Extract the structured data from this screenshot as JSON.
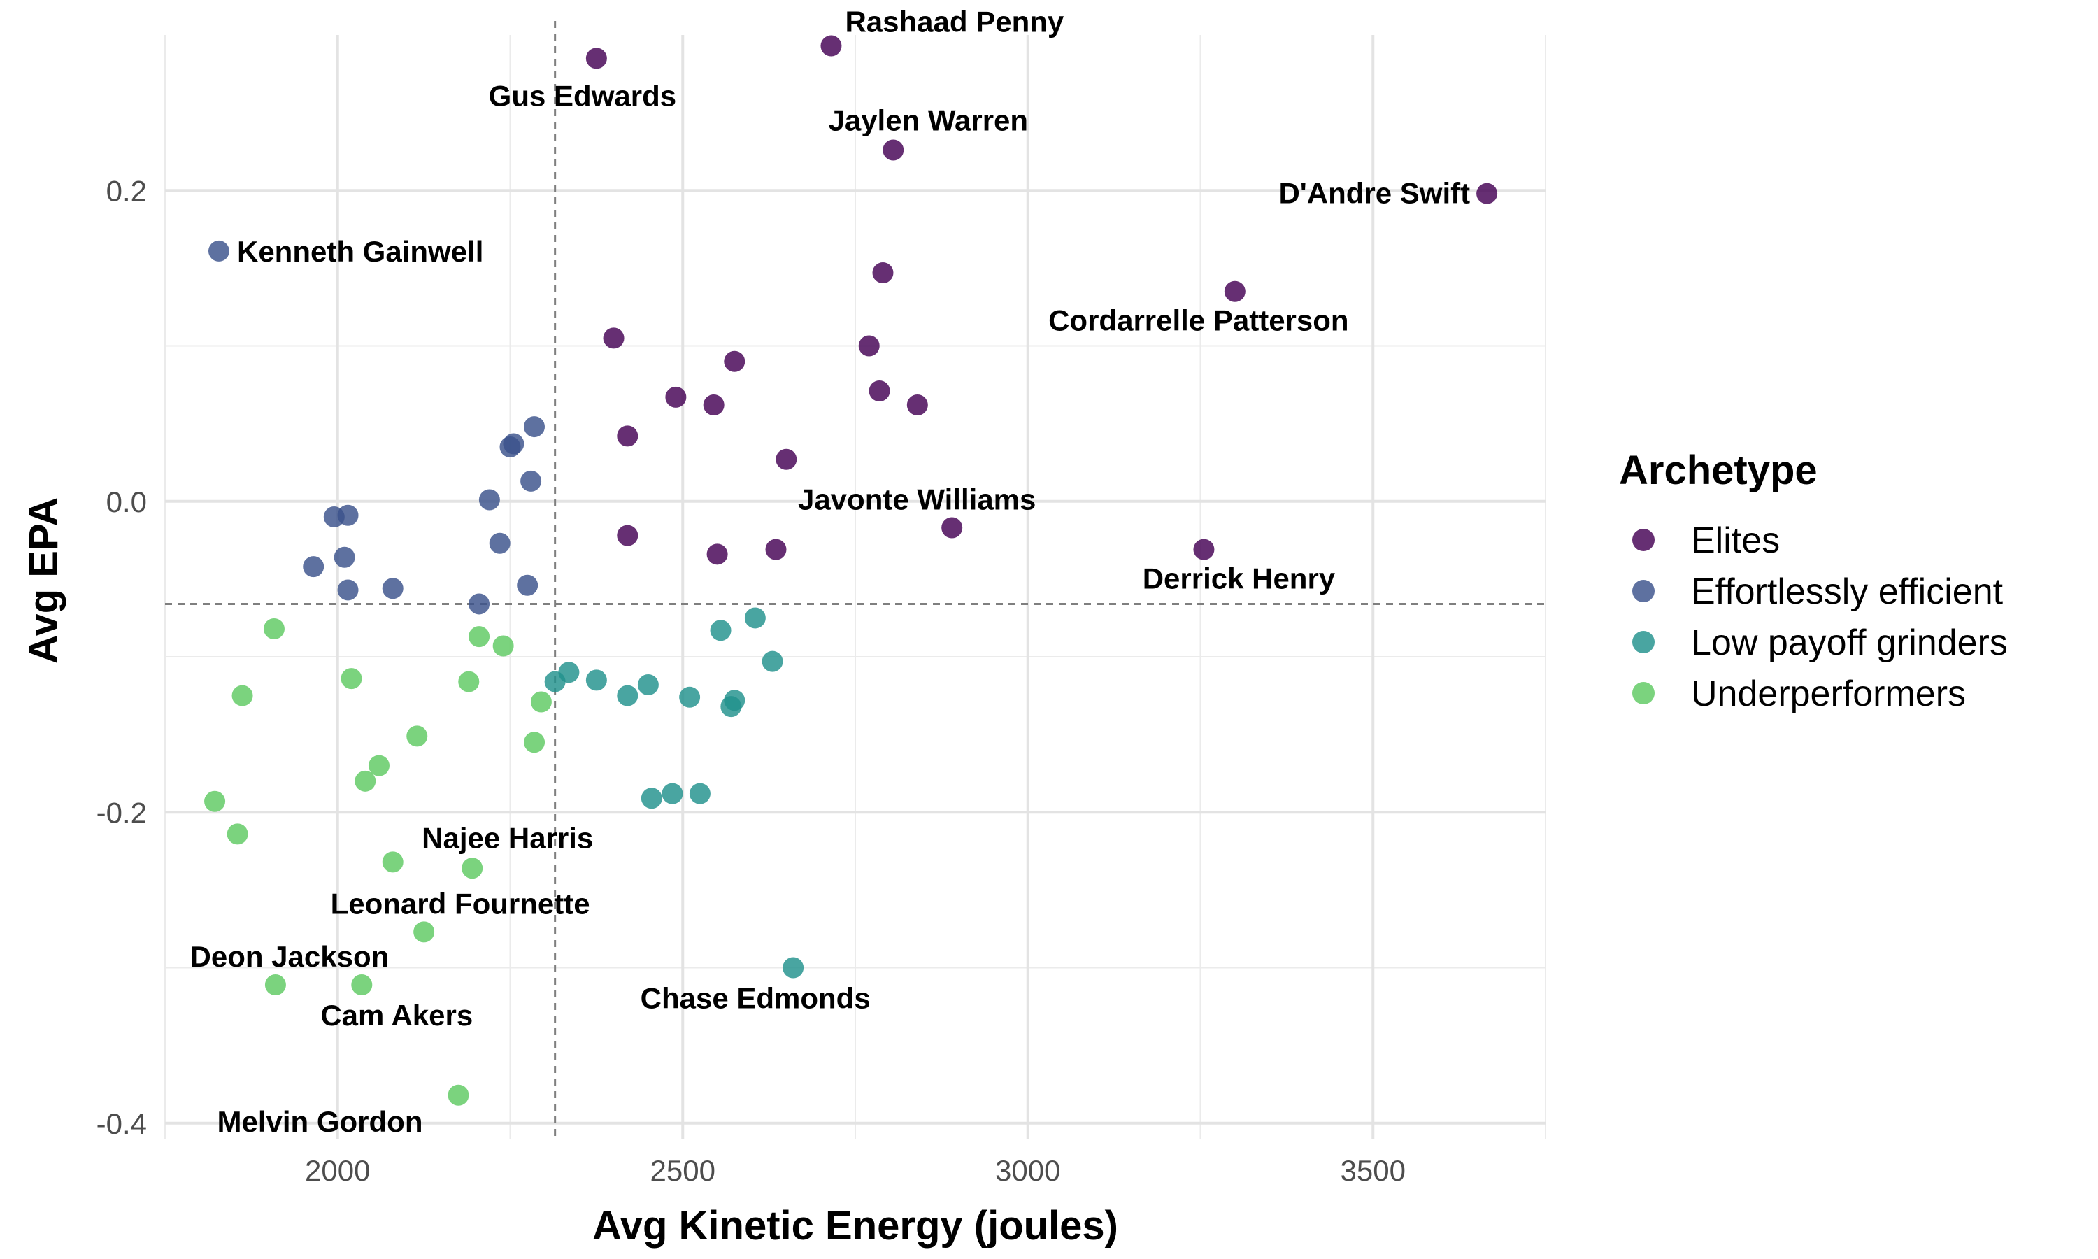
{
  "chart_data": {
    "type": "scatter",
    "xlabel": "Avg Kinetic Energy (joules)",
    "ylabel": "Avg EPA",
    "xlim": [
      1750,
      3750
    ],
    "ylim": [
      -0.41,
      0.3
    ],
    "x_ticks": [
      2000,
      2500,
      3000,
      3500
    ],
    "y_ticks": [
      -0.4,
      -0.2,
      0.0,
      0.2
    ],
    "y_tick_labels": [
      "-0.4",
      "-0.2",
      "0.0",
      "0.2"
    ],
    "reference_lines": {
      "vertical_x": 2315,
      "horizontal_y": -0.066
    },
    "grid": true,
    "legend": {
      "title": "Archetype",
      "position": "right"
    },
    "series": [
      {
        "name": "Elites",
        "color": "#440154",
        "points": [
          {
            "x": 2375,
            "y": 0.285,
            "label": "Gus Edwards"
          },
          {
            "x": 2715,
            "y": 0.293,
            "label": "Rashaad Penny"
          },
          {
            "x": 2805,
            "y": 0.226,
            "label": "Jaylen Warren"
          },
          {
            "x": 3665,
            "y": 0.198,
            "label": "D'Andre Swift"
          },
          {
            "x": 2790,
            "y": 0.147
          },
          {
            "x": 3300,
            "y": 0.135,
            "label": "Cordarrelle Patterson"
          },
          {
            "x": 2400,
            "y": 0.105
          },
          {
            "x": 2575,
            "y": 0.09
          },
          {
            "x": 2770,
            "y": 0.1
          },
          {
            "x": 2490,
            "y": 0.067
          },
          {
            "x": 2545,
            "y": 0.062
          },
          {
            "x": 2785,
            "y": 0.071
          },
          {
            "x": 2840,
            "y": 0.062
          },
          {
            "x": 2420,
            "y": 0.042
          },
          {
            "x": 2650,
            "y": 0.027
          },
          {
            "x": 2420,
            "y": -0.022
          },
          {
            "x": 2550,
            "y": -0.034
          },
          {
            "x": 2635,
            "y": -0.031
          },
          {
            "x": 2890,
            "y": -0.017,
            "label": "Javonte Williams"
          },
          {
            "x": 3255,
            "y": -0.031,
            "label": "Derrick Henry"
          }
        ]
      },
      {
        "name": "Effortlessly efficient",
        "color": "#3b528b",
        "points": [
          {
            "x": 1828,
            "y": 0.161,
            "label": "Kenneth Gainwell"
          },
          {
            "x": 2285,
            "y": 0.048
          },
          {
            "x": 2255,
            "y": 0.037
          },
          {
            "x": 2250,
            "y": 0.035
          },
          {
            "x": 2280,
            "y": 0.013
          },
          {
            "x": 2220,
            "y": 0.001
          },
          {
            "x": 1995,
            "y": -0.01
          },
          {
            "x": 2015,
            "y": -0.009
          },
          {
            "x": 2235,
            "y": -0.027
          },
          {
            "x": 1965,
            "y": -0.042
          },
          {
            "x": 2010,
            "y": -0.036
          },
          {
            "x": 2015,
            "y": -0.057
          },
          {
            "x": 2080,
            "y": -0.056
          },
          {
            "x": 2275,
            "y": -0.054
          },
          {
            "x": 2205,
            "y": -0.066
          }
        ]
      },
      {
        "name": "Low payoff grinders",
        "color": "#21918c",
        "points": [
          {
            "x": 2605,
            "y": -0.075
          },
          {
            "x": 2555,
            "y": -0.083
          },
          {
            "x": 2630,
            "y": -0.103
          },
          {
            "x": 2335,
            "y": -0.11
          },
          {
            "x": 2315,
            "y": -0.116
          },
          {
            "x": 2375,
            "y": -0.115
          },
          {
            "x": 2450,
            "y": -0.118
          },
          {
            "x": 2420,
            "y": -0.125
          },
          {
            "x": 2510,
            "y": -0.126
          },
          {
            "x": 2575,
            "y": -0.128
          },
          {
            "x": 2570,
            "y": -0.132
          },
          {
            "x": 2455,
            "y": -0.191
          },
          {
            "x": 2485,
            "y": -0.188
          },
          {
            "x": 2525,
            "y": -0.188
          },
          {
            "x": 2660,
            "y": -0.3,
            "label": "Chase Edmonds"
          }
        ]
      },
      {
        "name": "Underperformers",
        "color": "#5ec962",
        "points": [
          {
            "x": 1908,
            "y": -0.082
          },
          {
            "x": 2205,
            "y": -0.087
          },
          {
            "x": 2240,
            "y": -0.093
          },
          {
            "x": 2020,
            "y": -0.114
          },
          {
            "x": 2190,
            "y": -0.116
          },
          {
            "x": 1862,
            "y": -0.125
          },
          {
            "x": 2295,
            "y": -0.129
          },
          {
            "x": 2115,
            "y": -0.151
          },
          {
            "x": 2285,
            "y": -0.155
          },
          {
            "x": 2060,
            "y": -0.17
          },
          {
            "x": 2040,
            "y": -0.18
          },
          {
            "x": 1822,
            "y": -0.193
          },
          {
            "x": 1855,
            "y": -0.214
          },
          {
            "x": 2080,
            "y": -0.232,
            "label": "Najee Harris"
          },
          {
            "x": 2195,
            "y": -0.236
          },
          {
            "x": 2125,
            "y": -0.277,
            "label": "Leonard Fournette"
          },
          {
            "x": 1910,
            "y": -0.311,
            "label": "Deon Jackson"
          },
          {
            "x": 2035,
            "y": -0.311,
            "label": "Cam Akers"
          },
          {
            "x": 2175,
            "y": -0.382,
            "label": "Melvin Gordon"
          }
        ]
      }
    ]
  }
}
